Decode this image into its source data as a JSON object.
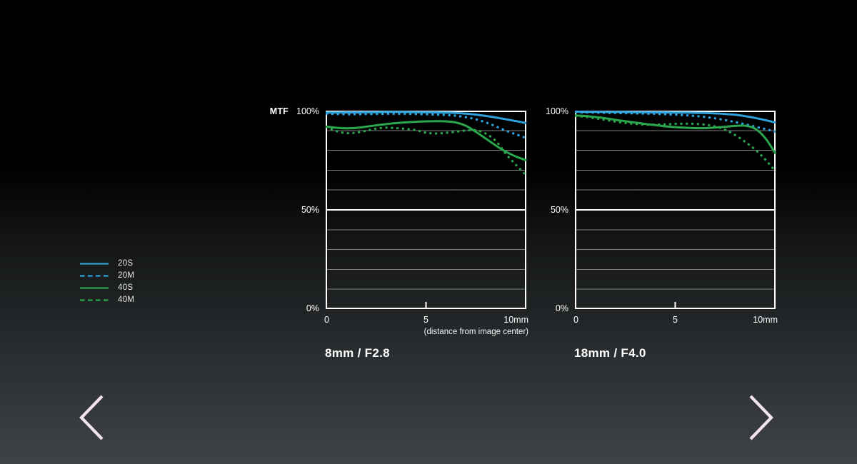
{
  "page": {
    "bg_top": "#000000",
    "bg_bottom": "#3f4345",
    "accent_blue": "#2fa2dc",
    "accent_green": "#2aa64d",
    "arrow_color": "#f3e3ef"
  },
  "legend": {
    "items": [
      {
        "label": "20S",
        "color": "#2fa2dc",
        "style": "solid"
      },
      {
        "label": "20M",
        "color": "#2fa2dc",
        "style": "dashed"
      },
      {
        "label": "40S",
        "color": "#2aa64d",
        "style": "solid"
      },
      {
        "label": "40M",
        "color": "#2aa64d",
        "style": "dashed"
      }
    ]
  },
  "navigation": {
    "prev_label": "previous",
    "next_label": "next"
  },
  "chart_data": [
    {
      "type": "line",
      "title": "8mm / F2.8",
      "ylabel": "MTF",
      "xlabel": "",
      "x_axis_note": "(distance from image center)",
      "xlim": [
        0,
        10
      ],
      "ylim": [
        0,
        100
      ],
      "x_ticks": [
        "0",
        "5",
        "10mm"
      ],
      "y_ticks": [
        "100%",
        "50%",
        "0%"
      ],
      "grid": "horizontal lines every 10%, 50% line emphasized white",
      "legend_position": "outside-left of page",
      "x": [
        0,
        0.5,
        1,
        1.5,
        2,
        2.5,
        3,
        3.5,
        4,
        4.5,
        5,
        5.5,
        6,
        6.5,
        7,
        7.5,
        8,
        8.5,
        9,
        9.5,
        10
      ],
      "series": [
        {
          "name": "20S",
          "color": "#2fa2dc",
          "style": "solid",
          "values": [
            99,
            99,
            99.1,
            99.1,
            99.2,
            99.2,
            99.3,
            99.3,
            99.3,
            99.2,
            99.2,
            99.1,
            99,
            98.8,
            98.5,
            98,
            97.3,
            96.5,
            95.6,
            94.7,
            93.7
          ]
        },
        {
          "name": "20M",
          "color": "#2fa2dc",
          "style": "dashed",
          "values": [
            98.5,
            98.3,
            98.2,
            98.2,
            98.3,
            98.3,
            98.4,
            98.4,
            98.4,
            98.3,
            98.2,
            98,
            97.8,
            97.4,
            96.7,
            95.6,
            94,
            92,
            89.8,
            88,
            86.2
          ]
        },
        {
          "name": "40S",
          "color": "#2aa64d",
          "style": "solid",
          "values": [
            92,
            91.4,
            91.1,
            91.3,
            91.9,
            92.6,
            93.2,
            93.7,
            94.1,
            94.4,
            94.6,
            94.7,
            94.6,
            94,
            92.3,
            89.2,
            85.8,
            82.3,
            79.2,
            76.8,
            75
          ]
        },
        {
          "name": "40M",
          "color": "#2aa64d",
          "style": "dashed",
          "values": [
            92,
            89.8,
            88.7,
            88.9,
            89.8,
            90.9,
            91.4,
            91.2,
            90.8,
            90.2,
            88.9,
            88.5,
            88.8,
            89.4,
            90,
            90.1,
            88.3,
            84.5,
            78,
            72.5,
            67.3
          ]
        }
      ]
    },
    {
      "type": "line",
      "title": "18mm / F4.0",
      "ylabel": "",
      "xlabel": "",
      "x_axis_note": "",
      "xlim": [
        0,
        10
      ],
      "ylim": [
        0,
        100
      ],
      "x_ticks": [
        "0",
        "5",
        "10mm"
      ],
      "y_ticks": [
        "100%",
        "50%",
        "0%"
      ],
      "grid": "horizontal lines every 10%, 50% line emphasized white",
      "x": [
        0,
        0.5,
        1,
        1.5,
        2,
        2.5,
        3,
        3.5,
        4,
        4.5,
        5,
        5.5,
        6,
        6.5,
        7,
        7.5,
        8,
        8.5,
        9,
        9.5,
        10
      ],
      "series": [
        {
          "name": "20S",
          "color": "#2fa2dc",
          "style": "solid",
          "values": [
            99.5,
            99.4,
            99.4,
            99.3,
            99.3,
            99.3,
            99.2,
            99.2,
            99.1,
            99.1,
            99,
            99,
            98.9,
            98.8,
            98.6,
            98.3,
            97.9,
            97.2,
            96.3,
            95.2,
            94
          ]
        },
        {
          "name": "20M",
          "color": "#2fa2dc",
          "style": "dashed",
          "values": [
            99.2,
            99.1,
            99,
            98.9,
            98.8,
            98.7,
            98.6,
            98.5,
            98.4,
            98.2,
            98,
            97.7,
            97.3,
            96.8,
            96.1,
            95.2,
            94.2,
            93.1,
            91.9,
            90.7,
            89.4
          ]
        },
        {
          "name": "40S",
          "color": "#2aa64d",
          "style": "solid",
          "values": [
            97.6,
            97.3,
            96.8,
            96.2,
            95.4,
            94.7,
            94,
            93.3,
            92.7,
            92.1,
            91.7,
            91.4,
            91.2,
            91.2,
            91.5,
            91.9,
            92.3,
            92.4,
            90.8,
            86,
            78.3
          ]
        },
        {
          "name": "40M",
          "color": "#2aa64d",
          "style": "dashed",
          "values": [
            97.4,
            96.9,
            96.2,
            95.4,
            94.5,
            93.8,
            93.3,
            93,
            93,
            93.1,
            93.3,
            93.4,
            93.3,
            92.9,
            92,
            90.3,
            87.6,
            84.2,
            80.2,
            75.2,
            69.3
          ]
        }
      ]
    }
  ]
}
